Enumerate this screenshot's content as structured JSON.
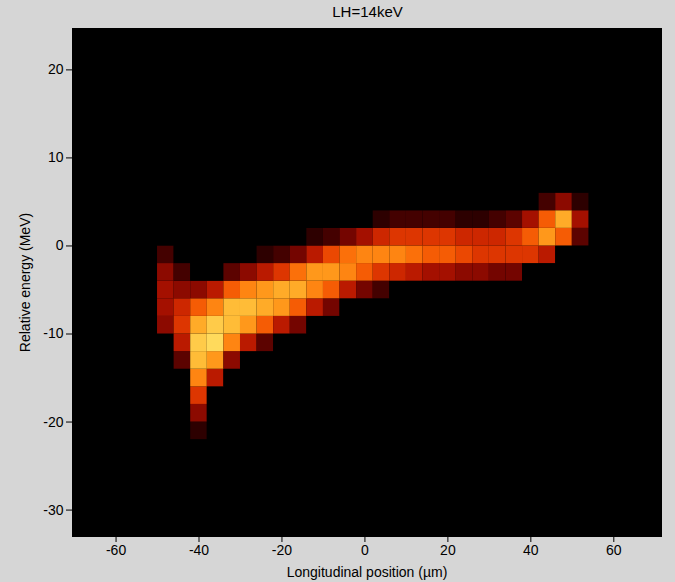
{
  "chart_data": {
    "type": "heatmap",
    "title": "LH=14keV",
    "x_label": "Longitudinal position (µm)",
    "y_label": "Relative energy (MeV)",
    "xlim": [
      -70.5,
      71.5
    ],
    "ylim": [
      -33,
      24.7
    ],
    "xticks": [
      -60,
      -40,
      -20,
      0,
      20,
      40,
      60
    ],
    "yticks": [
      -30,
      -20,
      -10,
      0,
      10,
      20
    ],
    "zlim": [
      0,
      1
    ],
    "x": [
      -48,
      -44,
      -40,
      -36,
      -32,
      -28,
      -24,
      -20,
      -16,
      -12,
      -8,
      -4,
      0,
      4,
      8,
      12,
      16,
      20,
      24,
      28,
      32,
      36,
      40,
      44,
      48,
      52
    ],
    "y": [
      -21,
      -19,
      -17,
      -15,
      -13,
      -11,
      -9,
      -7,
      -5,
      -3,
      -1,
      1,
      3,
      5,
      7
    ],
    "values": [
      [
        0,
        0,
        0.1,
        0,
        0,
        0,
        0,
        0,
        0,
        0,
        0,
        0,
        0,
        0,
        0,
        0,
        0,
        0,
        0,
        0,
        0,
        0,
        0,
        0,
        0,
        0
      ],
      [
        0,
        0,
        0.3,
        0,
        0,
        0,
        0,
        0,
        0,
        0,
        0,
        0,
        0,
        0,
        0,
        0,
        0,
        0,
        0,
        0,
        0,
        0,
        0,
        0,
        0,
        0
      ],
      [
        0,
        0,
        0.5,
        0,
        0,
        0,
        0,
        0,
        0,
        0,
        0,
        0,
        0,
        0,
        0,
        0,
        0,
        0,
        0,
        0,
        0,
        0,
        0,
        0,
        0,
        0
      ],
      [
        0,
        0,
        0.7,
        0.4,
        0,
        0,
        0,
        0,
        0,
        0,
        0,
        0,
        0,
        0,
        0,
        0,
        0,
        0,
        0,
        0,
        0,
        0,
        0,
        0,
        0,
        0
      ],
      [
        0,
        0.2,
        0.85,
        0.75,
        0.3,
        0,
        0,
        0,
        0,
        0,
        0,
        0,
        0,
        0,
        0,
        0,
        0,
        0,
        0,
        0,
        0,
        0,
        0,
        0,
        0,
        0
      ],
      [
        0,
        0.4,
        0.9,
        0.95,
        0.7,
        0.4,
        0.2,
        0,
        0,
        0,
        0,
        0,
        0,
        0,
        0,
        0,
        0,
        0,
        0,
        0,
        0,
        0,
        0,
        0,
        0,
        0
      ],
      [
        0.3,
        0.5,
        0.8,
        0.9,
        0.85,
        0.75,
        0.6,
        0.4,
        0.25,
        0,
        0,
        0,
        0,
        0,
        0,
        0,
        0,
        0,
        0,
        0,
        0,
        0,
        0,
        0,
        0,
        0
      ],
      [
        0.35,
        0.45,
        0.6,
        0.7,
        0.85,
        0.85,
        0.8,
        0.75,
        0.6,
        0.4,
        0.25,
        0,
        0,
        0,
        0,
        0,
        0,
        0,
        0,
        0,
        0,
        0,
        0,
        0,
        0,
        0
      ],
      [
        0.35,
        0.3,
        0.3,
        0.4,
        0.6,
        0.7,
        0.75,
        0.8,
        0.8,
        0.7,
        0.6,
        0.4,
        0.25,
        0.15,
        0,
        0,
        0,
        0,
        0,
        0,
        0,
        0,
        0,
        0,
        0,
        0
      ],
      [
        0.3,
        0.15,
        0,
        0,
        0.2,
        0.3,
        0.4,
        0.5,
        0.65,
        0.75,
        0.75,
        0.7,
        0.6,
        0.5,
        0.45,
        0.4,
        0.35,
        0.35,
        0.3,
        0.3,
        0.25,
        0.25,
        0,
        0,
        0,
        0
      ],
      [
        0.15,
        0,
        0,
        0,
        0,
        0,
        0.1,
        0.15,
        0.25,
        0.4,
        0.55,
        0.65,
        0.7,
        0.7,
        0.7,
        0.65,
        0.6,
        0.6,
        0.55,
        0.5,
        0.5,
        0.5,
        0.5,
        0.4,
        0,
        0
      ],
      [
        0,
        0,
        0,
        0,
        0,
        0,
        0,
        0,
        0,
        0.1,
        0.15,
        0.25,
        0.35,
        0.45,
        0.5,
        0.5,
        0.5,
        0.5,
        0.45,
        0.45,
        0.45,
        0.5,
        0.6,
        0.75,
        0.6,
        0.2
      ],
      [
        0,
        0,
        0,
        0,
        0,
        0,
        0,
        0,
        0,
        0,
        0,
        0,
        0,
        0.1,
        0.15,
        0.15,
        0.15,
        0.15,
        0.1,
        0.1,
        0.15,
        0.2,
        0.35,
        0.6,
        0.8,
        0.35
      ],
      [
        0,
        0,
        0,
        0,
        0,
        0,
        0,
        0,
        0,
        0,
        0,
        0,
        0,
        0,
        0,
        0,
        0,
        0,
        0,
        0,
        0,
        0,
        0,
        0.15,
        0.3,
        0.1
      ],
      [
        0,
        0,
        0,
        0,
        0,
        0,
        0,
        0,
        0,
        0,
        0,
        0,
        0,
        0,
        0,
        0,
        0,
        0,
        0,
        0,
        0,
        0,
        0,
        0,
        0,
        0
      ]
    ]
  }
}
